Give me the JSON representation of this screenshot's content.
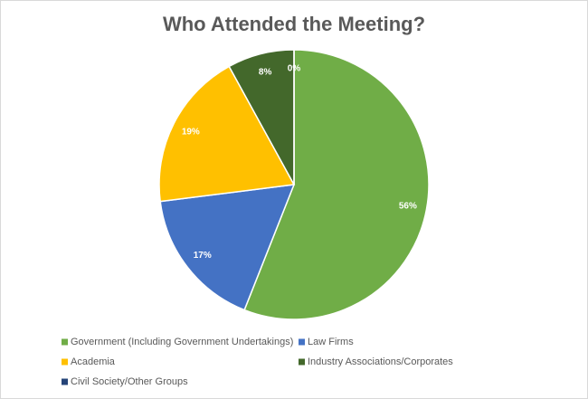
{
  "chart_data": {
    "type": "pie",
    "title": "Who Attended the Meeting?",
    "categories": [
      "Government (Including Government Undertakings)",
      "Law Firms",
      "Academia",
      "Industry Associations/Corporates",
      "Civil Society/Other Groups"
    ],
    "values": [
      56,
      17,
      19,
      8,
      0
    ],
    "value_labels": [
      "56%",
      "17%",
      "19%",
      "8%",
      "0%"
    ],
    "colors": [
      "#70ad47",
      "#4472c4",
      "#ffc000",
      "#43682b",
      "#264478"
    ]
  }
}
